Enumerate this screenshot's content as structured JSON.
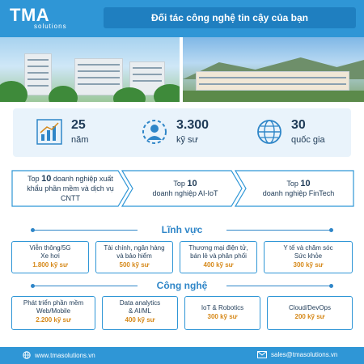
{
  "header": {
    "logo_main": "TMA",
    "logo_sub": "solutions",
    "tagline": "Đối tác công nghệ tin cậy của bạn"
  },
  "stats": [
    {
      "number": "25",
      "unit": "năm",
      "icon": "growth-chart-icon"
    },
    {
      "number": "3.300",
      "unit": "kỹ sư",
      "icon": "engineer-gear-icon"
    },
    {
      "number": "30",
      "unit": "quốc gia",
      "icon": "globe-icon"
    }
  ],
  "rankings": [
    {
      "prefix": "Top ",
      "bold": "10",
      "rest": " doanh nghiệp xuất khẩu phần mềm và dịch vụ CNTT"
    },
    {
      "prefix": "Top ",
      "bold": "10",
      "rest": "doanh nghiệp AI-IoT"
    },
    {
      "prefix": "Top ",
      "bold": "10",
      "rest": "doanh nghiệp FinTech"
    }
  ],
  "fields": {
    "title": "Lĩnh vực",
    "items": [
      {
        "label": "Viễn thông/5G\nXe hơi",
        "count": "1.800 kỹ sư"
      },
      {
        "label": "Tài chính, ngân hàng\nvà bảo hiểm",
        "count": "500 kỹ sư"
      },
      {
        "label": "Thương mại điện tử,\nbán lẻ và phân phối",
        "count": "400 kỹ sư"
      },
      {
        "label": "Y tế và chăm sóc\nSức khỏe",
        "count": "300 kỹ sư"
      }
    ]
  },
  "tech": {
    "title": "Công nghệ",
    "items": [
      {
        "label": "Phát triển phần mềm\nWeb/Mobile",
        "count": "2.200 kỹ sư"
      },
      {
        "label": "Data analytics\n& AI/ML",
        "count": "400 kỹ sư"
      },
      {
        "label": "IoT & Robotics",
        "count": "300 kỹ sư"
      },
      {
        "label": "Cloud/DevOps",
        "count": "200 kỹ sư"
      }
    ]
  },
  "footer": {
    "website": "www.tmasolutions.vn",
    "email": "sales@tmasolutions.vn"
  }
}
